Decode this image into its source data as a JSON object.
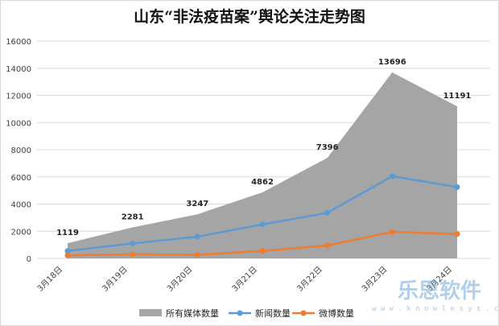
{
  "chart_data": {
    "type": "area",
    "title": "山东“非法疫苗案”舆论关注走势图",
    "categories": [
      "3月18日",
      "3月19日",
      "3月20日",
      "3月21日",
      "3月22日",
      "3月23日",
      "3月24日"
    ],
    "ylim": [
      0,
      16000
    ],
    "yticks": [
      "0",
      "2000",
      "4000",
      "6000",
      "8000",
      "10000",
      "12000",
      "14000",
      "16000"
    ],
    "grid": true,
    "legend_position": "bottom",
    "series": [
      {
        "name": "所有媒体数量",
        "type": "area",
        "color": "#a5a5a5",
        "values": [
          1119,
          2281,
          3247,
          4862,
          7396,
          13696,
          11191
        ],
        "data_labels": [
          "1119",
          "2281",
          "3247",
          "4862",
          "7396",
          "13696",
          "11191"
        ]
      },
      {
        "name": "新闻数量",
        "type": "line",
        "color": "#5b9bd5",
        "values": [
          550,
          1100,
          1600,
          2500,
          3350,
          6050,
          5250
        ]
      },
      {
        "name": "微博数量",
        "type": "line",
        "color": "#ed7d31",
        "values": [
          220,
          300,
          260,
          550,
          950,
          1950,
          1800
        ]
      }
    ]
  },
  "watermark": {
    "text": "乐思软件",
    "url": "w w w . k n o w l e s y s . c n"
  }
}
